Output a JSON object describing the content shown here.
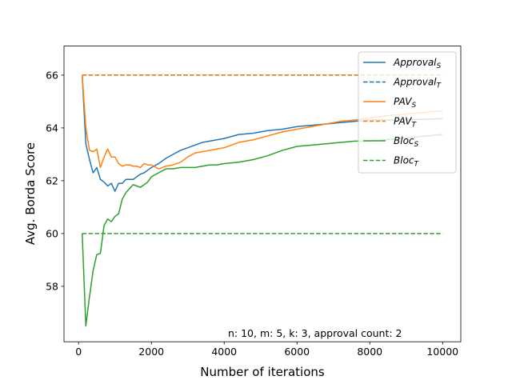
{
  "chart_data": {
    "type": "line",
    "xlabel": "Number of iterations",
    "ylabel": "Avg. Borda Score",
    "xlim": [
      -400,
      10500
    ],
    "ylim": [
      55.9,
      67.1
    ],
    "xticks": [
      0,
      2000,
      4000,
      6000,
      8000,
      10000
    ],
    "yticks": [
      58,
      60,
      62,
      64,
      66
    ],
    "annotation": "n: 10, m: 5, k: 3, approval count: 2",
    "legend_position": "top-right",
    "grid": false,
    "series": [
      {
        "name": "Approval_S",
        "label_base": "Approval",
        "label_sub": "S",
        "color": "#1f77b4",
        "style": "solid",
        "x": [
          100,
          200,
          300,
          400,
          500,
          600,
          700,
          800,
          900,
          1000,
          1100,
          1200,
          1300,
          1400,
          1500,
          1600,
          1700,
          1800,
          1900,
          2000,
          2200,
          2400,
          2600,
          2800,
          3000,
          3200,
          3400,
          3600,
          3800,
          4000,
          4400,
          4800,
          5200,
          5600,
          6000,
          6400,
          6800,
          7200,
          7600,
          8000,
          8400,
          8800,
          9200,
          9600,
          10000
        ],
        "y": [
          66.0,
          63.4,
          62.8,
          62.3,
          62.5,
          62.05,
          61.95,
          61.8,
          61.9,
          61.6,
          61.9,
          61.9,
          62.05,
          62.05,
          62.05,
          62.15,
          62.25,
          62.3,
          62.4,
          62.5,
          62.65,
          62.85,
          63.0,
          63.15,
          63.25,
          63.35,
          63.45,
          63.5,
          63.55,
          63.6,
          63.75,
          63.8,
          63.9,
          63.95,
          64.05,
          64.1,
          64.15,
          64.2,
          64.25,
          64.3,
          64.3,
          64.3,
          64.32,
          64.33,
          64.35
        ]
      },
      {
        "name": "Approval_T",
        "label_base": "Approval",
        "label_sub": "T",
        "color": "#1f77b4",
        "style": "dashed",
        "x": [
          100,
          10000
        ],
        "y": [
          66.0,
          66.0
        ]
      },
      {
        "name": "PAV_S",
        "label_base": "PAV",
        "label_sub": "S",
        "color": "#ff7f0e",
        "style": "solid",
        "x": [
          100,
          200,
          300,
          400,
          500,
          600,
          700,
          800,
          900,
          1000,
          1100,
          1200,
          1300,
          1400,
          1500,
          1600,
          1700,
          1800,
          1900,
          2000,
          2200,
          2400,
          2600,
          2800,
          3000,
          3200,
          3400,
          3600,
          3800,
          4000,
          4400,
          4800,
          5200,
          5600,
          6000,
          6400,
          6800,
          7200,
          7600,
          8000,
          8400,
          8800,
          9200,
          9600,
          10000
        ],
        "y": [
          66.0,
          64.0,
          63.15,
          63.1,
          63.2,
          62.5,
          62.9,
          63.2,
          62.9,
          62.9,
          62.65,
          62.55,
          62.6,
          62.6,
          62.55,
          62.55,
          62.5,
          62.65,
          62.6,
          62.6,
          62.45,
          62.55,
          62.6,
          62.7,
          62.9,
          63.05,
          63.1,
          63.15,
          63.2,
          63.25,
          63.45,
          63.55,
          63.7,
          63.85,
          63.95,
          64.05,
          64.15,
          64.25,
          64.3,
          64.38,
          64.45,
          64.5,
          64.55,
          64.6,
          64.65
        ]
      },
      {
        "name": "PAV_T",
        "label_base": "PAV",
        "label_sub": "T",
        "color": "#ff7f0e",
        "style": "dashed",
        "x": [
          100,
          10000
        ],
        "y": [
          66.0,
          66.0
        ]
      },
      {
        "name": "Bloc_S",
        "label_base": "Bloc",
        "label_sub": "S",
        "color": "#2ca02c",
        "style": "solid",
        "x": [
          100,
          200,
          300,
          400,
          500,
          600,
          700,
          800,
          900,
          1000,
          1100,
          1200,
          1300,
          1400,
          1500,
          1600,
          1700,
          1800,
          1900,
          2000,
          2200,
          2400,
          2600,
          2800,
          3000,
          3200,
          3400,
          3600,
          3800,
          4000,
          4400,
          4800,
          5200,
          5600,
          6000,
          6400,
          6800,
          7200,
          7600,
          8000,
          8400,
          8800,
          9200,
          9600,
          10000
        ],
        "y": [
          60.0,
          56.5,
          57.6,
          58.6,
          59.2,
          59.25,
          60.3,
          60.55,
          60.45,
          60.65,
          60.75,
          61.3,
          61.55,
          61.7,
          61.85,
          61.8,
          61.75,
          61.85,
          61.95,
          62.15,
          62.3,
          62.45,
          62.45,
          62.5,
          62.5,
          62.5,
          62.55,
          62.6,
          62.6,
          62.65,
          62.7,
          62.8,
          62.95,
          63.15,
          63.3,
          63.35,
          63.4,
          63.45,
          63.5,
          63.5,
          63.55,
          63.6,
          63.65,
          63.7,
          63.75
        ]
      },
      {
        "name": "Bloc_T",
        "label_base": "Bloc",
        "label_sub": "T",
        "color": "#2ca02c",
        "style": "dashed",
        "x": [
          100,
          10000
        ],
        "y": [
          60.0,
          60.0
        ]
      }
    ]
  }
}
